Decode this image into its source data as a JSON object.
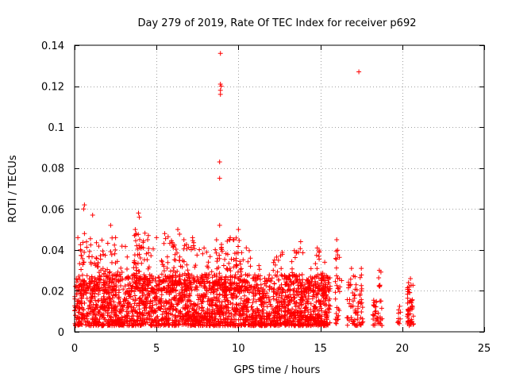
{
  "colors": {
    "marker": "#ff0000",
    "grid": "#a0a0a0",
    "axis": "#000000",
    "background": "#ffffff"
  },
  "chart_data": {
    "type": "scatter",
    "title": "Day 279 of 2019, Rate Of TEC Index for receiver p692",
    "xlabel": "GPS time / hours",
    "ylabel": "ROTI / TECUs",
    "xlim": [
      0,
      25
    ],
    "ylim": [
      0,
      0.14
    ],
    "x_ticks": [
      0,
      5,
      10,
      15,
      20,
      25
    ],
    "y_ticks": [
      0,
      0.02,
      0.04,
      0.06,
      0.08,
      0.1,
      0.12,
      0.14
    ],
    "x_tick_labels": [
      "0",
      "5",
      "10",
      "15",
      "20",
      "25"
    ],
    "y_tick_labels": [
      "0",
      "0.02",
      "0.04",
      "0.06",
      "0.08",
      "0.1",
      "0.12",
      "0.14"
    ],
    "grid": true,
    "marker": "+",
    "notable_points": [
      {
        "x": 8.9,
        "y": 0.136
      },
      {
        "x": 8.9,
        "y": 0.121
      },
      {
        "x": 8.95,
        "y": 0.12
      },
      {
        "x": 8.9,
        "y": 0.118
      },
      {
        "x": 8.9,
        "y": 0.116
      },
      {
        "x": 8.85,
        "y": 0.083
      },
      {
        "x": 8.85,
        "y": 0.075
      },
      {
        "x": 17.35,
        "y": 0.127
      },
      {
        "x": 0.6,
        "y": 0.062
      },
      {
        "x": 0.55,
        "y": 0.06
      },
      {
        "x": 1.1,
        "y": 0.057
      },
      {
        "x": 3.9,
        "y": 0.058
      },
      {
        "x": 3.95,
        "y": 0.056
      },
      {
        "x": 2.2,
        "y": 0.052
      },
      {
        "x": 8.85,
        "y": 0.052
      },
      {
        "x": 6.3,
        "y": 0.05
      },
      {
        "x": 3.7,
        "y": 0.05
      },
      {
        "x": 10.0,
        "y": 0.05
      },
      {
        "x": 0.6,
        "y": 0.048
      },
      {
        "x": 5.5,
        "y": 0.048
      },
      {
        "x": 4.5,
        "y": 0.047
      },
      {
        "x": 0.2,
        "y": 0.046
      },
      {
        "x": 2.5,
        "y": 0.046
      },
      {
        "x": 5.0,
        "y": 0.046
      },
      {
        "x": 7.2,
        "y": 0.046
      },
      {
        "x": 9.5,
        "y": 0.046
      },
      {
        "x": 16.0,
        "y": 0.045
      },
      {
        "x": 13.8,
        "y": 0.044
      },
      {
        "x": 16.9,
        "y": 0.031
      },
      {
        "x": 17.5,
        "y": 0.031
      },
      {
        "x": 16.3,
        "y": 0.025
      },
      {
        "x": 18.6,
        "y": 0.03
      },
      {
        "x": 20.5,
        "y": 0.026
      }
    ],
    "clusters": [
      {
        "x_start": 0.0,
        "x_end": 15.6,
        "y_min": 0.003,
        "y_max": 0.028,
        "n": 2400
      },
      {
        "x_start": 0.0,
        "x_end": 15.6,
        "y_min": 0.02,
        "y_max": 0.042,
        "n": 280
      },
      {
        "x_start": 0.3,
        "x_end": 2.6,
        "y_min": 0.02,
        "y_max": 0.046,
        "n": 70
      },
      {
        "x_start": 3.6,
        "x_end": 4.6,
        "y_min": 0.02,
        "y_max": 0.05,
        "n": 50
      },
      {
        "x_start": 5.3,
        "x_end": 7.4,
        "y_min": 0.02,
        "y_max": 0.048,
        "n": 70
      },
      {
        "x_start": 8.5,
        "x_end": 10.2,
        "y_min": 0.02,
        "y_max": 0.046,
        "n": 60
      },
      {
        "x_start": 15.9,
        "x_end": 16.2,
        "y_min": 0.004,
        "y_max": 0.04,
        "n": 30
      },
      {
        "x_start": 16.6,
        "x_end": 17.6,
        "y_min": 0.003,
        "y_max": 0.028,
        "n": 70
      },
      {
        "x_start": 18.2,
        "x_end": 18.8,
        "y_min": 0.003,
        "y_max": 0.016,
        "n": 35
      },
      {
        "x_start": 18.5,
        "x_end": 18.7,
        "y_min": 0.022,
        "y_max": 0.03,
        "n": 6
      },
      {
        "x_start": 19.7,
        "x_end": 19.9,
        "y_min": 0.004,
        "y_max": 0.015,
        "n": 10
      },
      {
        "x_start": 20.3,
        "x_end": 20.7,
        "y_min": 0.003,
        "y_max": 0.026,
        "n": 55
      }
    ]
  }
}
